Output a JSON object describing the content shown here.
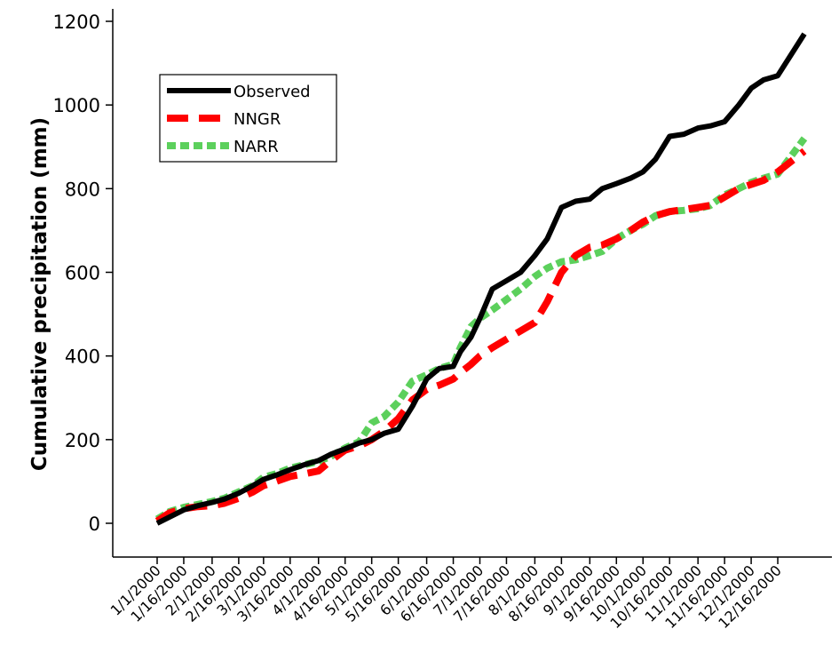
{
  "chart_data": {
    "type": "line",
    "ylabel": "Cumulative precipitation (mm)",
    "ylim": [
      0,
      1200
    ],
    "yticks": [
      0,
      200,
      400,
      600,
      800,
      1000,
      1200
    ],
    "x_tick_labels": [
      "1/1/2000",
      "1/16/2000",
      "2/1/2000",
      "2/16/2000",
      "3/1/2000",
      "3/16/2000",
      "4/1/2000",
      "4/16/2000",
      "5/1/2000",
      "5/16/2000",
      "6/1/2000",
      "6/16/2000",
      "7/1/2000",
      "7/16/2000",
      "8/1/2000",
      "8/16/2000",
      "9/1/2000",
      "9/16/2000",
      "10/1/2000",
      "10/16/2000",
      "11/1/2000",
      "11/16/2000",
      "12/1/2000",
      "12/16/2000"
    ],
    "legend": {
      "position": "top-left",
      "boxed": true
    },
    "grid": false,
    "series": [
      {
        "name": "Observed",
        "color": "#000000",
        "style": "solid",
        "x": [
          "1/1/2000",
          "1/8/2000",
          "1/16/2000",
          "1/24/2000",
          "2/1/2000",
          "2/8/2000",
          "2/16/2000",
          "2/24/2000",
          "3/1/2000",
          "3/8/2000",
          "3/16/2000",
          "3/24/2000",
          "4/1/2000",
          "4/8/2000",
          "4/16/2000",
          "4/24/2000",
          "5/1/2000",
          "5/8/2000",
          "5/16/2000",
          "5/24/2000",
          "6/1/2000",
          "6/8/2000",
          "6/16/2000",
          "6/20/2000",
          "6/26/2000",
          "7/1/2000",
          "7/8/2000",
          "7/16/2000",
          "7/24/2000",
          "8/1/2000",
          "8/8/2000",
          "8/16/2000",
          "8/24/2000",
          "9/1/2000",
          "9/8/2000",
          "9/16/2000",
          "9/24/2000",
          "10/1/2000",
          "10/8/2000",
          "10/16/2000",
          "10/24/2000",
          "11/1/2000",
          "11/8/2000",
          "11/16/2000",
          "11/24/2000",
          "12/1/2000",
          "12/8/2000",
          "12/16/2000",
          "12/31/2000"
        ],
        "values": [
          0,
          15,
          32,
          42,
          50,
          58,
          72,
          90,
          105,
          115,
          128,
          140,
          150,
          165,
          178,
          192,
          200,
          215,
          225,
          280,
          345,
          370,
          375,
          410,
          445,
          490,
          560,
          580,
          600,
          640,
          680,
          755,
          770,
          775,
          800,
          812,
          825,
          840,
          870,
          925,
          930,
          945,
          950,
          960,
          1000,
          1040,
          1060,
          1070,
          1170
        ]
      },
      {
        "name": "NNGR",
        "color": "#ff0000",
        "style": "dashed",
        "x": [
          "1/1/2000",
          "1/8/2000",
          "1/16/2000",
          "1/24/2000",
          "2/1/2000",
          "2/8/2000",
          "2/16/2000",
          "2/24/2000",
          "3/1/2000",
          "3/8/2000",
          "3/16/2000",
          "3/24/2000",
          "4/1/2000",
          "4/8/2000",
          "4/16/2000",
          "4/24/2000",
          "5/1/2000",
          "5/8/2000",
          "5/16/2000",
          "5/24/2000",
          "6/1/2000",
          "6/8/2000",
          "6/16/2000",
          "6/20/2000",
          "6/26/2000",
          "7/1/2000",
          "7/8/2000",
          "7/16/2000",
          "7/24/2000",
          "8/1/2000",
          "8/8/2000",
          "8/16/2000",
          "8/24/2000",
          "9/1/2000",
          "9/8/2000",
          "9/16/2000",
          "9/24/2000",
          "10/1/2000",
          "10/8/2000",
          "10/16/2000",
          "10/24/2000",
          "11/1/2000",
          "11/8/2000",
          "11/16/2000",
          "11/24/2000",
          "12/1/2000",
          "12/8/2000",
          "12/16/2000",
          "12/31/2000"
        ],
        "values": [
          5,
          25,
          35,
          40,
          42,
          48,
          60,
          75,
          90,
          100,
          112,
          118,
          125,
          150,
          175,
          185,
          200,
          220,
          250,
          295,
          320,
          330,
          345,
          360,
          380,
          400,
          420,
          440,
          460,
          480,
          530,
          600,
          640,
          660,
          665,
          680,
          700,
          720,
          735,
          745,
          750,
          755,
          760,
          780,
          800,
          810,
          820,
          840,
          890
        ]
      },
      {
        "name": "NARR",
        "color": "#5cd05c",
        "style": "dotted",
        "x": [
          "1/1/2000",
          "1/8/2000",
          "1/16/2000",
          "1/24/2000",
          "2/1/2000",
          "2/8/2000",
          "2/16/2000",
          "2/24/2000",
          "3/1/2000",
          "3/8/2000",
          "3/16/2000",
          "3/24/2000",
          "4/1/2000",
          "4/8/2000",
          "4/16/2000",
          "4/24/2000",
          "5/1/2000",
          "5/8/2000",
          "5/16/2000",
          "5/24/2000",
          "6/1/2000",
          "6/8/2000",
          "6/16/2000",
          "6/20/2000",
          "6/26/2000",
          "7/1/2000",
          "7/8/2000",
          "7/16/2000",
          "7/24/2000",
          "8/1/2000",
          "8/8/2000",
          "8/16/2000",
          "8/24/2000",
          "9/1/2000",
          "9/8/2000",
          "9/16/2000",
          "9/24/2000",
          "10/1/2000",
          "10/8/2000",
          "10/16/2000",
          "10/24/2000",
          "11/1/2000",
          "11/8/2000",
          "11/16/2000",
          "11/24/2000",
          "12/1/2000",
          "12/8/2000",
          "12/16/2000",
          "12/31/2000"
        ],
        "values": [
          10,
          28,
          38,
          45,
          52,
          60,
          75,
          90,
          110,
          118,
          132,
          140,
          148,
          160,
          180,
          195,
          240,
          255,
          290,
          340,
          355,
          370,
          380,
          420,
          470,
          490,
          510,
          535,
          560,
          590,
          610,
          625,
          630,
          640,
          650,
          680,
          700,
          715,
          735,
          745,
          748,
          752,
          760,
          785,
          800,
          815,
          825,
          835,
          920
        ]
      }
    ]
  }
}
